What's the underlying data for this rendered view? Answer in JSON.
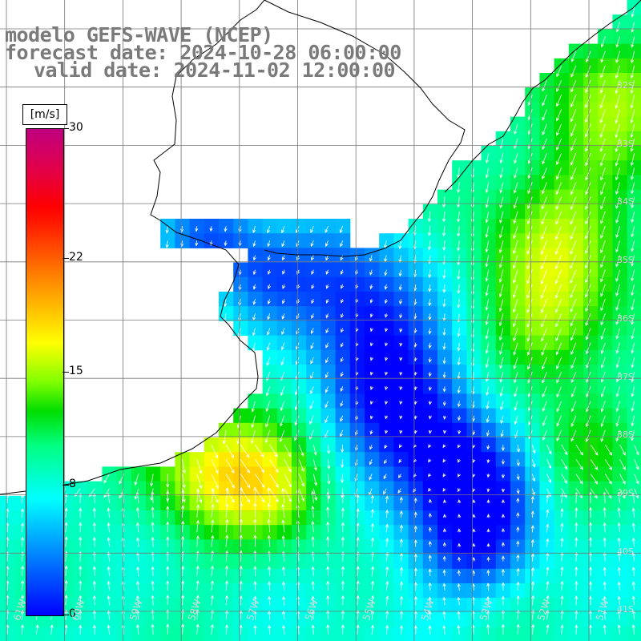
{
  "title": {
    "line1": "modelo GEFS-WAVE (NCEP)",
    "line2": "forecast date: 2024-10-28 06:00:00",
    "line3": "valid date: 2024-11-02 12:00:00"
  },
  "colorbar": {
    "unit": "[m/s]",
    "min": 0,
    "max": 30,
    "ticks": [
      {
        "label": "30",
        "value": 30
      },
      {
        "label": "22",
        "value": 22
      },
      {
        "label": "15",
        "value": 15
      },
      {
        "label": "8",
        "value": 8
      },
      {
        "label": "0",
        "value": 0
      }
    ]
  },
  "lon_labels": [
    "61W",
    "60W",
    "59W",
    "58W",
    "57W",
    "56W",
    "55W",
    "54W",
    "53W",
    "52W",
    "51W"
  ],
  "lat_labels": [
    "32S",
    "33S",
    "34S",
    "35S",
    "36S",
    "37S",
    "38S",
    "39S",
    "40S",
    "41S"
  ],
  "colors": {
    "land": "#ffffff",
    "grid": "#777777",
    "coast": "#000000",
    "arrow": "#ffffff",
    "title": "#7a7a7a"
  }
}
